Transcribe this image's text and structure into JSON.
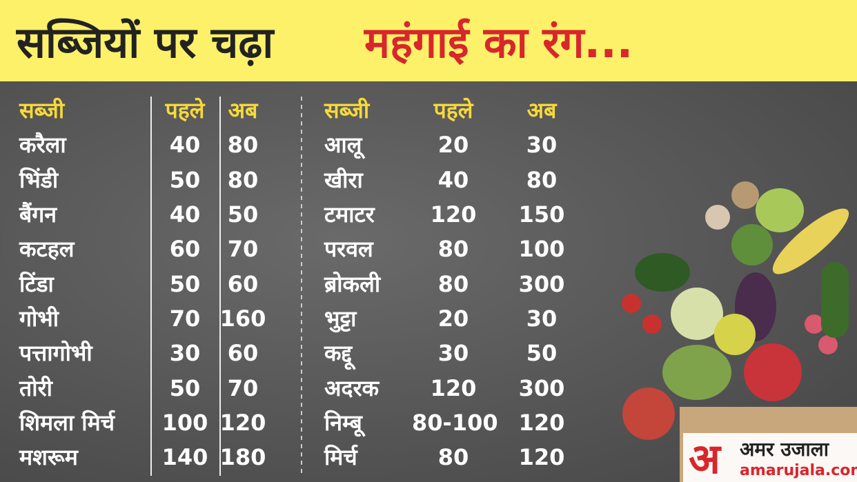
{
  "header": {
    "title_part1": "सब्जियों पर चढ़ा",
    "title_part2": "महंगाई का रंग..."
  },
  "tables": [
    {
      "columns": [
        "सब्जी",
        "पहले",
        "अब"
      ],
      "rows": [
        [
          "करैला",
          "40",
          "80"
        ],
        [
          "भिंडी",
          "50",
          "80"
        ],
        [
          "बैंगन",
          "40",
          "50"
        ],
        [
          "कटहल",
          "60",
          "70"
        ],
        [
          "टिंडा",
          "50",
          "60"
        ],
        [
          "गोभी",
          "70",
          "160"
        ],
        [
          "पत्तागोभी",
          "30",
          "60"
        ],
        [
          "तोरी",
          "50",
          "70"
        ],
        [
          "शिमला मिर्च",
          "100",
          "120"
        ],
        [
          "मशरूम",
          "140",
          "180"
        ]
      ]
    },
    {
      "columns": [
        "सब्जी",
        "पहले",
        "अब"
      ],
      "rows": [
        [
          "आलू",
          "20",
          "30"
        ],
        [
          "खीरा",
          "40",
          "80"
        ],
        [
          "टमाटर",
          "120",
          "150"
        ],
        [
          "परवल",
          "80",
          "100"
        ],
        [
          "ब्रोकली",
          "80",
          "300"
        ],
        [
          "भुट्टा",
          "20",
          "30"
        ],
        [
          "कद्दू",
          "30",
          "50"
        ],
        [
          "अदरक",
          "120",
          "300"
        ],
        [
          "निम्बू",
          "80-100",
          "120"
        ],
        [
          "मिर्च",
          "80",
          "120"
        ]
      ]
    }
  ],
  "logo": {
    "mark": "अ",
    "name": "अमर उजाला",
    "site": "amarujala.com"
  }
}
